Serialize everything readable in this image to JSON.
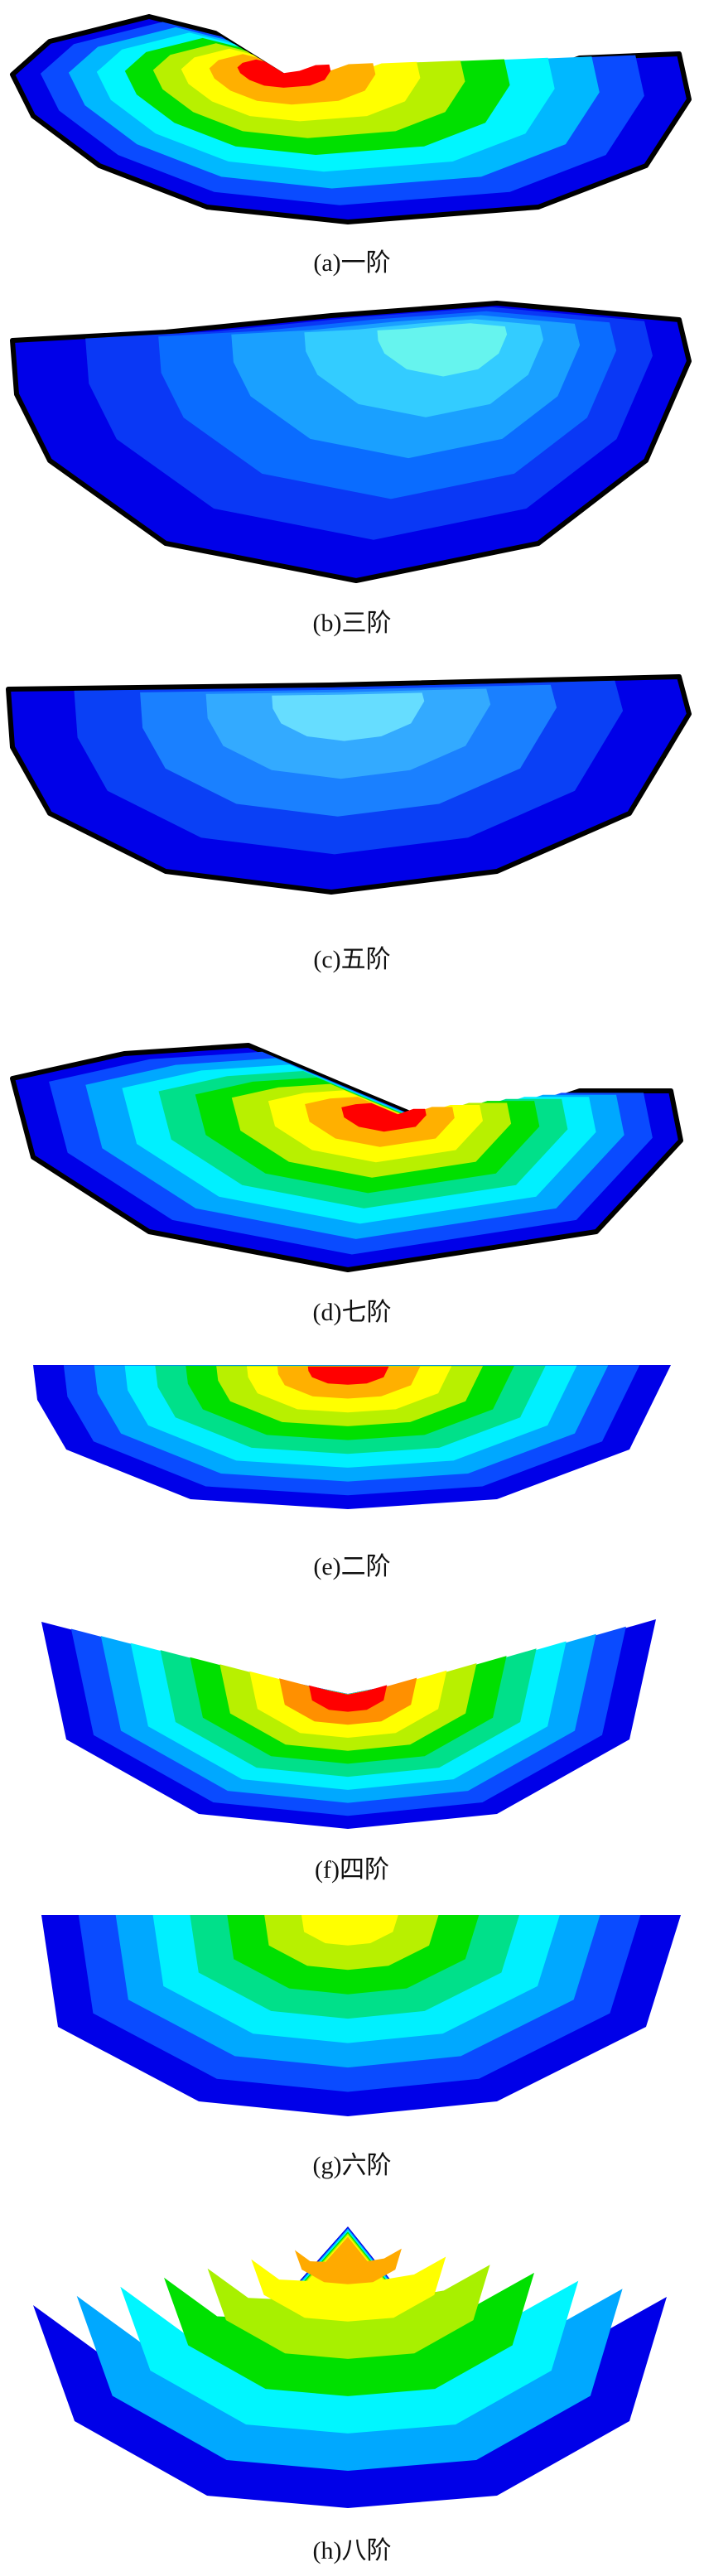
{
  "figure": {
    "panels": [
      {
        "id": "a",
        "caption": "(a)一阶",
        "colors": [
          "#0000e8",
          "#0a4bff",
          "#00b8ff",
          "#00f6ff",
          "#00e000",
          "#b8f000",
          "#ffff00",
          "#ffb000",
          "#ff0000"
        ]
      },
      {
        "id": "b",
        "caption": "(b)三阶",
        "colors": [
          "#0000e8",
          "#0a38f5",
          "#0a6cff",
          "#1aa0ff",
          "#33ccff",
          "#66f4ee"
        ]
      },
      {
        "id": "c",
        "caption": "(c)五阶",
        "colors": [
          "#0000e8",
          "#0a40f5",
          "#1a80ff",
          "#33aaff",
          "#66ddff"
        ]
      },
      {
        "id": "d",
        "caption": "(d)七阶",
        "colors": [
          "#0000e8",
          "#0a4bff",
          "#00a8ff",
          "#00f0ff",
          "#00e08a",
          "#00e000",
          "#b8f000",
          "#ffff00",
          "#ffb000",
          "#ff0000"
        ]
      },
      {
        "id": "e",
        "caption": "(e)二阶",
        "colors": [
          "#0000e8",
          "#0a4bff",
          "#00a8ff",
          "#00f0ff",
          "#00e08a",
          "#00e000",
          "#b8f000",
          "#ffff00",
          "#ffb000",
          "#ff0000"
        ]
      },
      {
        "id": "f",
        "caption": "(f)四阶",
        "colors": [
          "#0000e8",
          "#0a4bff",
          "#00a8ff",
          "#00f0ff",
          "#00e08a",
          "#00e000",
          "#b8f000",
          "#ffff00",
          "#ff9000",
          "#ff0000"
        ]
      },
      {
        "id": "g",
        "caption": "(g)六阶",
        "colors": [
          "#0000e8",
          "#0a4bff",
          "#00a8ff",
          "#00f0ff",
          "#00e08a",
          "#00e000",
          "#b8f000",
          "#ffff00"
        ]
      },
      {
        "id": "h",
        "caption": "(h)八阶",
        "colors": [
          "#0000e8",
          "#00a8ff",
          "#00f6ff",
          "#00e000",
          "#a8f000",
          "#ffff00",
          "#ffaa00"
        ]
      }
    ]
  }
}
